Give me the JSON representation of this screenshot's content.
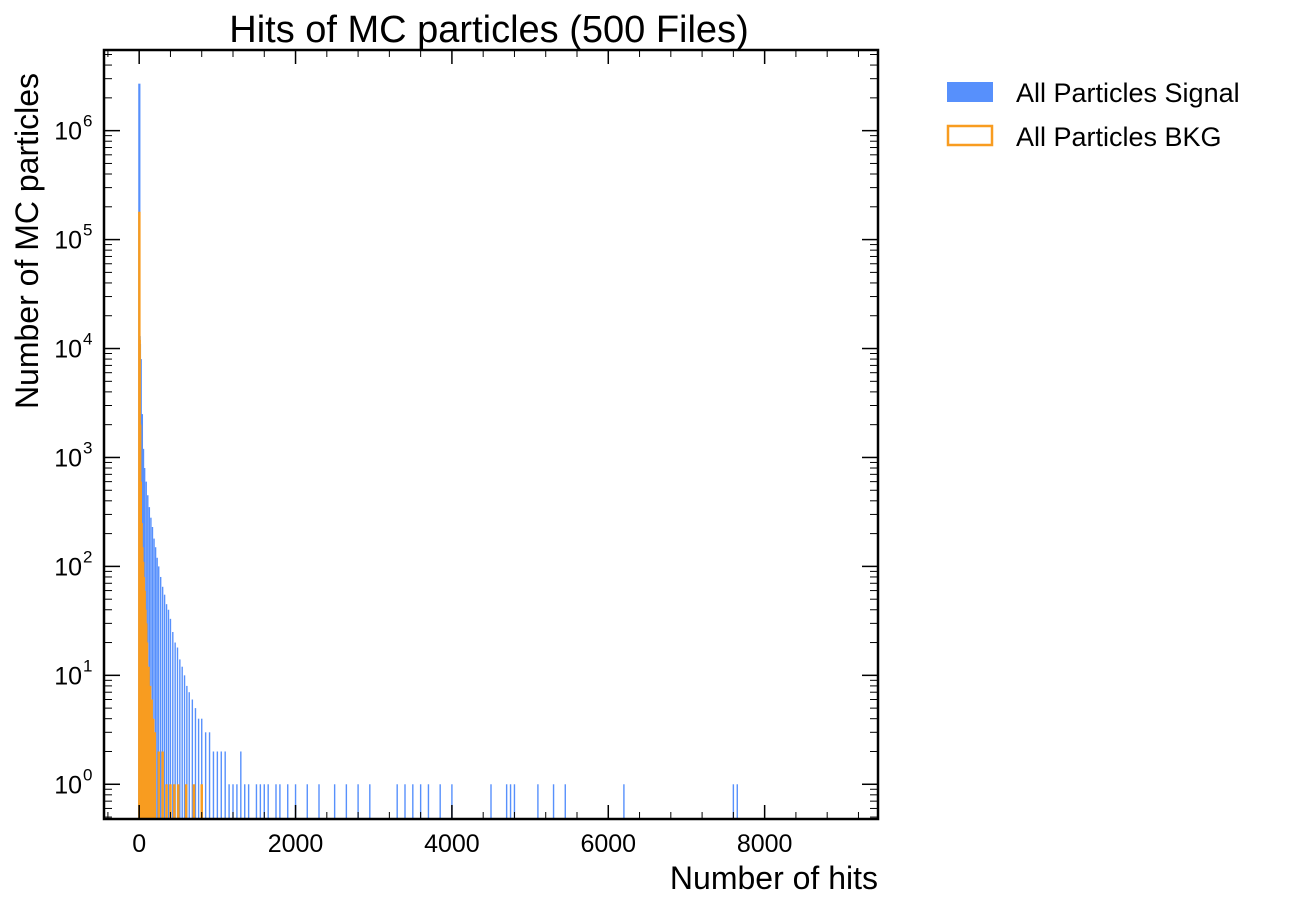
{
  "chart_data": {
    "type": "bar",
    "title": "Hits of MC particles (500 Files)",
    "xlabel": "Number of hits",
    "ylabel": "Number of MC particles",
    "xlim": [
      -450,
      9450
    ],
    "ylim": [
      0.48,
      5500000
    ],
    "yscale": "log",
    "grid": false,
    "legend_position": "outside-top-right",
    "x_ticks": [
      {
        "value": 0,
        "label": "0"
      },
      {
        "value": 2000,
        "label": "2000"
      },
      {
        "value": 4000,
        "label": "4000"
      },
      {
        "value": 6000,
        "label": "6000"
      },
      {
        "value": 8000,
        "label": "8000"
      }
    ],
    "y_ticks": [
      {
        "value": 1,
        "base": "10",
        "exp": "0"
      },
      {
        "value": 10,
        "base": "10",
        "exp": "1"
      },
      {
        "value": 100,
        "base": "10",
        "exp": "2"
      },
      {
        "value": 1000,
        "base": "10",
        "exp": "3"
      },
      {
        "value": 10000,
        "base": "10",
        "exp": "4"
      },
      {
        "value": 100000,
        "base": "10",
        "exp": "5"
      },
      {
        "value": 1000000,
        "base": "10",
        "exp": "6"
      }
    ],
    "series": [
      {
        "name": "All Particles Signal",
        "style": "filled",
        "color": "#5790fc",
        "x": [
          2,
          6,
          10,
          20,
          35,
          50,
          70,
          90,
          110,
          130,
          150,
          170,
          190,
          210,
          230,
          250,
          275,
          300,
          325,
          350,
          375,
          400,
          430,
          460,
          490,
          520,
          550,
          580,
          610,
          640,
          680,
          720,
          760,
          800,
          850,
          900,
          950,
          1000,
          1050,
          1100,
          1150,
          1200,
          1250,
          1300,
          1350,
          1400,
          1500,
          1550,
          1600,
          1650,
          1750,
          1800,
          1900,
          2000,
          2150,
          2300,
          2500,
          2650,
          2800,
          2950,
          3300,
          3400,
          3500,
          3600,
          3700,
          3850,
          4000,
          4500,
          4700,
          4750,
          4800,
          5100,
          5300,
          5450,
          6200,
          7600,
          7650
        ],
        "y": [
          2700000,
          13000,
          11000,
          8000,
          2500,
          1200,
          800,
          600,
          450,
          350,
          280,
          230,
          180,
          150,
          120,
          100,
          80,
          65,
          55,
          45,
          40,
          33,
          25,
          20,
          18,
          14,
          12,
          10,
          8,
          7,
          6,
          5,
          4,
          4,
          3,
          3,
          2,
          2,
          2,
          2,
          1,
          1,
          1,
          2,
          1,
          1,
          1,
          1,
          1,
          1,
          1,
          1,
          1,
          1,
          1,
          1,
          1,
          1,
          1,
          1,
          1,
          1,
          1,
          1,
          1,
          1,
          1,
          1,
          1,
          1,
          1,
          1,
          1,
          1,
          1,
          1,
          1
        ]
      },
      {
        "name": "All Particles BKG",
        "style": "step",
        "color": "#f89c20",
        "x": [
          2,
          6,
          12,
          20,
          30,
          40,
          50,
          60,
          70,
          80,
          90,
          100,
          120,
          140,
          160,
          180,
          200,
          250,
          300,
          350,
          400,
          450,
          500,
          600,
          700,
          800
        ],
        "y": [
          180000,
          12000,
          2000,
          600,
          250,
          150,
          110,
          80,
          60,
          40,
          30,
          20,
          12,
          8,
          6,
          4,
          3,
          2,
          2,
          1,
          1,
          1,
          1,
          1,
          1,
          1
        ]
      }
    ]
  }
}
